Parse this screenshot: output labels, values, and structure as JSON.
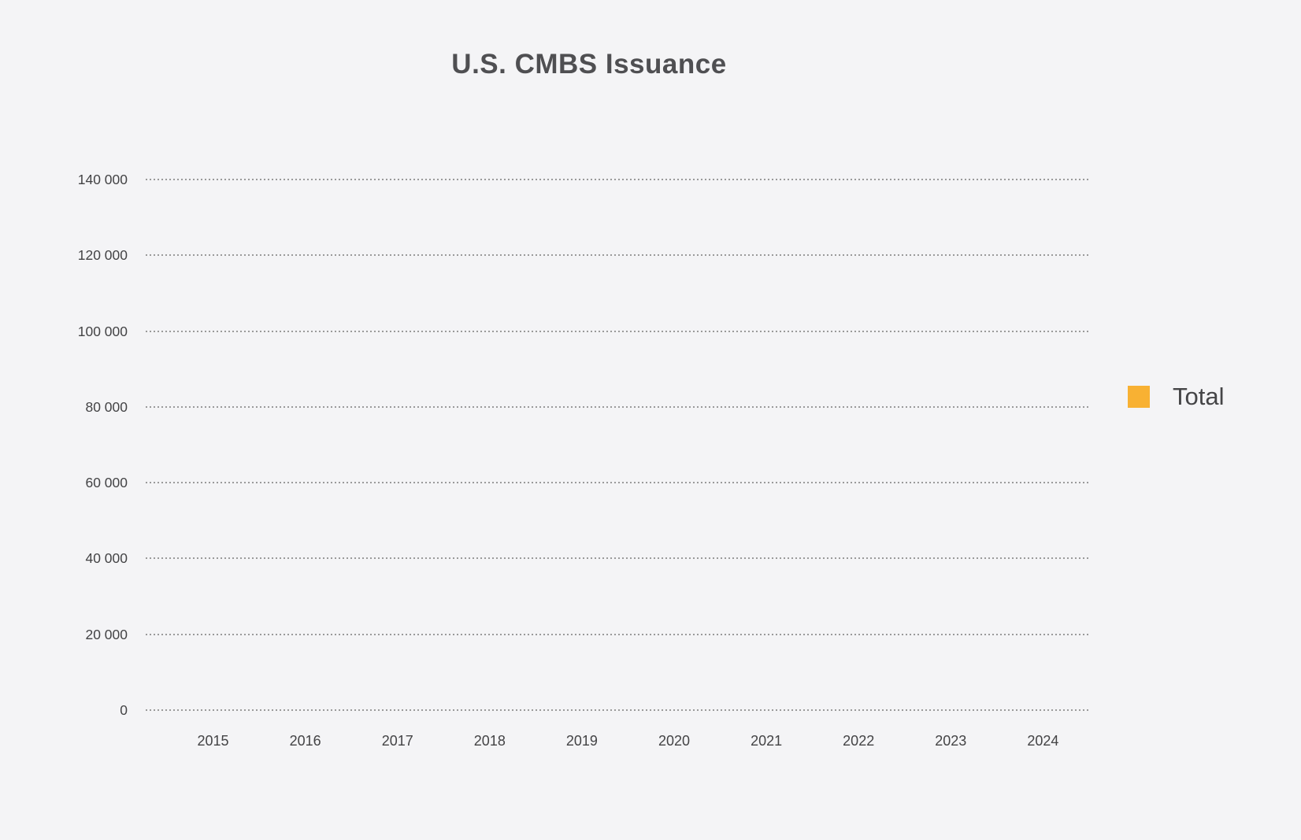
{
  "page": {
    "background_color": "#f4f4f6"
  },
  "chart": {
    "title": "U.S. CMBS Issuance",
    "title_color": "#4f4f52",
    "tick_label_color": "#434345",
    "gridline_color": "#9a9a9a",
    "legend": {
      "position": "right",
      "items": [
        {
          "label": "Total",
          "swatch_color": "#f8b133"
        }
      ]
    }
  },
  "chart_data": {
    "type": "bar",
    "title": "U.S. CMBS Issuance",
    "categories": [
      "2015",
      "2016",
      "2017",
      "2018",
      "2019",
      "2020",
      "2021",
      "2022",
      "2023",
      "2024"
    ],
    "series": [
      {
        "name": "Total",
        "color": "#f8b133",
        "values": [
          null,
          null,
          null,
          null,
          null,
          null,
          null,
          null,
          null,
          null
        ]
      }
    ],
    "xlabel": "",
    "ylabel": "",
    "ylim": [
      0,
      140000
    ],
    "ytick_interval": 20000,
    "ytick_labels": [
      "0",
      "20 000",
      "40 000",
      "60 000",
      "80 000",
      "100 000",
      "120 000",
      "140 000"
    ],
    "grid": "horizontal-dotted",
    "legend_position": "right",
    "note": "plot area is empty - no bars are rendered in the screenshot"
  }
}
